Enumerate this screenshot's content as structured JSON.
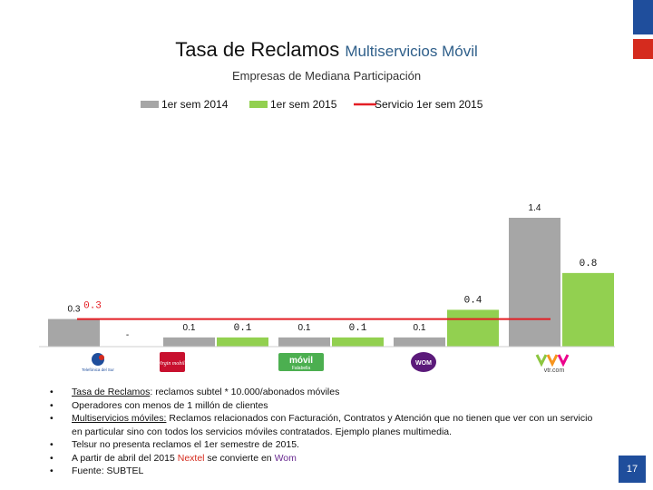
{
  "title": {
    "main": "Tasa de Reclamos",
    "sub": "Multiservicios Móvil"
  },
  "subtitle": "Empresas de Mediana Participación",
  "colors": {
    "s2014": "#a6a6a6",
    "s2015": "#92d050",
    "service": "#e31e24",
    "logo_blue": "#1f4e9c",
    "logo_red": "#d52b1e"
  },
  "chart_data": {
    "type": "bar",
    "title": "Tasa de Reclamos Multiservicios Móvil",
    "subtitle": "Empresas de Mediana Participación",
    "legend_position": "top",
    "categories": [
      "Telefónica del Sur",
      "Virgin Mobile",
      "Móvil Falabella",
      "Nextel / Wom",
      "VTR.com"
    ],
    "series": [
      {
        "name": "1er sem 2014",
        "values": [
          0.3,
          0.1,
          0.1,
          0.1,
          1.4
        ],
        "labels": [
          "0.3",
          "0.1",
          "0.1",
          "0.1",
          "1.4"
        ]
      },
      {
        "name": "1er sem 2015",
        "values": [
          0,
          0.1,
          0.1,
          0.4,
          0.8
        ],
        "labels": [
          "-",
          "0.1",
          "0.1",
          "0.4",
          "0.8"
        ]
      }
    ],
    "reference_line": {
      "name": "Servicio 1er sem 2015",
      "value": 0.3,
      "label": "0.3"
    },
    "ylim": [
      0,
      1.5
    ],
    "grid": false
  },
  "logos": [
    {
      "name": "Telefónica del Sur",
      "icon": "telefonica-del-sur-logo-icon",
      "text": "Telefónica del Sur"
    },
    {
      "name": "Virgin Mobile",
      "icon": "virgin-mobile-logo-icon",
      "text": "Virgin mobile"
    },
    {
      "name": "Móvil Falabella",
      "icon": "movil-falabella-logo-icon",
      "text_top": "móvil",
      "text_bottom": "Falabella"
    },
    {
      "name": "Wom",
      "icon": "wom-logo-icon",
      "text": "WOM"
    },
    {
      "name": "VTR.com",
      "icon": "vtr-logo-icon",
      "text": "vtr.com"
    }
  ],
  "notes": {
    "n1_term": "Tasa de Reclamos",
    "n1_text": ": reclamos subtel * 10.000/abonados móviles",
    "n2_text": "Operadores con menos de 1 millón de clientes",
    "n3_term": "Multiservicios móviles:",
    "n3_text": " Reclamos relacionados con Facturación, Contratos y Atención que no tienen que ver con un servicio en particular sino con todos los servicios móviles contratados. Ejemplo planes multimedia.",
    "n4_text": "Telsur no presenta reclamos el 1er semestre de 2015.",
    "n5_a": "A partir de abril del 2015 ",
    "n5_b": "Nextel",
    "n5_c": " se convierte en ",
    "n5_d": "Wom",
    "n6_text": "Fuente: SUBTEL"
  },
  "bullet": "•",
  "page_number": "17"
}
